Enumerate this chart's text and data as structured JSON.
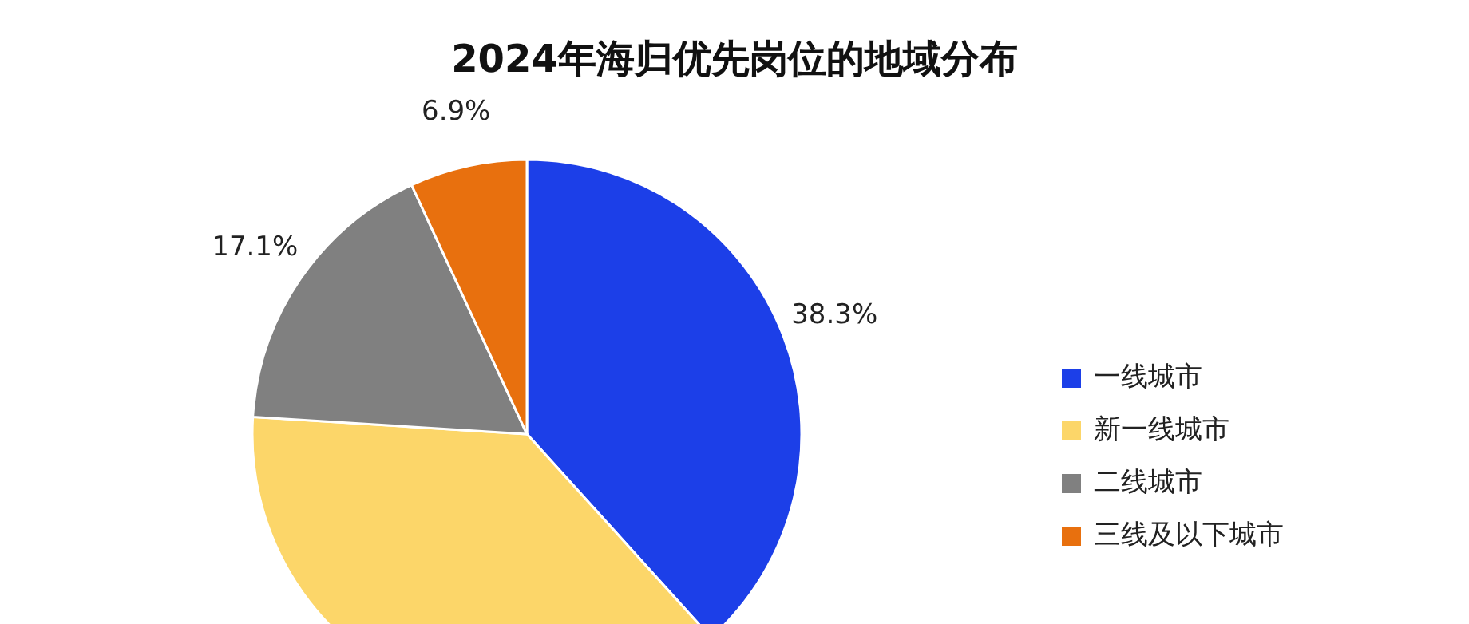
{
  "chart_data": {
    "type": "pie",
    "title": "2024年海归优先岗位的地域分布",
    "categories": [
      "一线城市",
      "新一线城市",
      "二线城市",
      "三线及以下城市"
    ],
    "values": [
      38.3,
      37.7,
      17.1,
      6.9
    ],
    "colors": [
      "#1c3fe8",
      "#fcd669",
      "#808080",
      "#e8700e"
    ],
    "value_labels": [
      "38.3%",
      null,
      "17.1%",
      "6.9%"
    ],
    "legend": "right"
  }
}
